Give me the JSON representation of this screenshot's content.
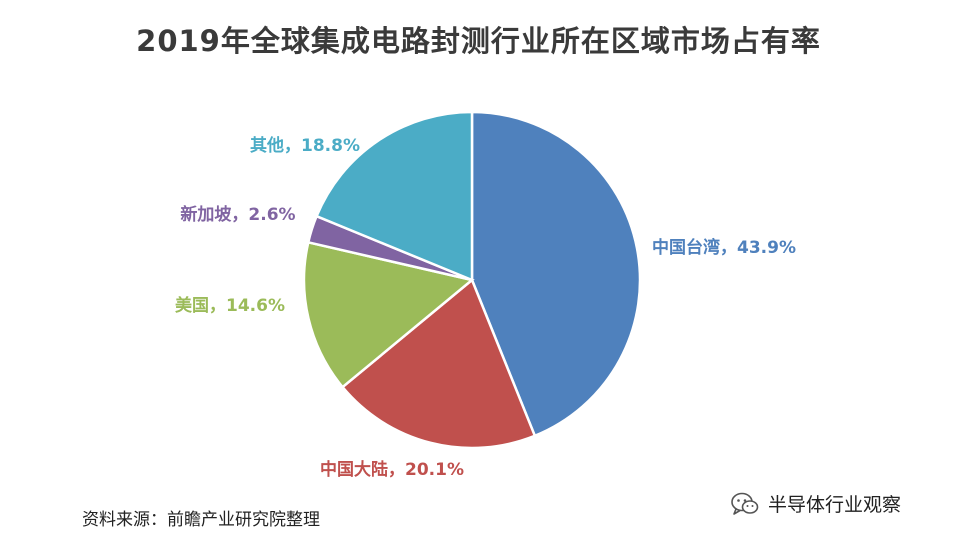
{
  "title": "2019年全球集成电路封测行业所在区域市场占有率",
  "source": "资料来源：前瞻产业研究院整理",
  "watermark": {
    "text": "半导体行业观察",
    "icon": "wechat-icon"
  },
  "chart_data": {
    "type": "pie",
    "title": "2019年全球集成电路封测行业所在区域市场占有率",
    "slices": [
      {
        "name": "中国台湾",
        "value": 43.9,
        "label": "中国台湾，43.9%",
        "color": "#4f81bd"
      },
      {
        "name": "中国大陆",
        "value": 20.1,
        "label": "中国大陆，20.1%",
        "color": "#c0504d"
      },
      {
        "name": "美国",
        "value": 14.6,
        "label": "美国，14.6%",
        "color": "#9bbb59"
      },
      {
        "name": "新加坡",
        "value": 2.6,
        "label": "新加坡，2.6%",
        "color": "#8064a2"
      },
      {
        "name": "其他",
        "value": 18.8,
        "label": "其他，18.8%",
        "color": "#4bacc6"
      }
    ],
    "start_angle": "12 o'clock",
    "direction": "clockwise",
    "legend": "none (data labels outside slices)"
  }
}
